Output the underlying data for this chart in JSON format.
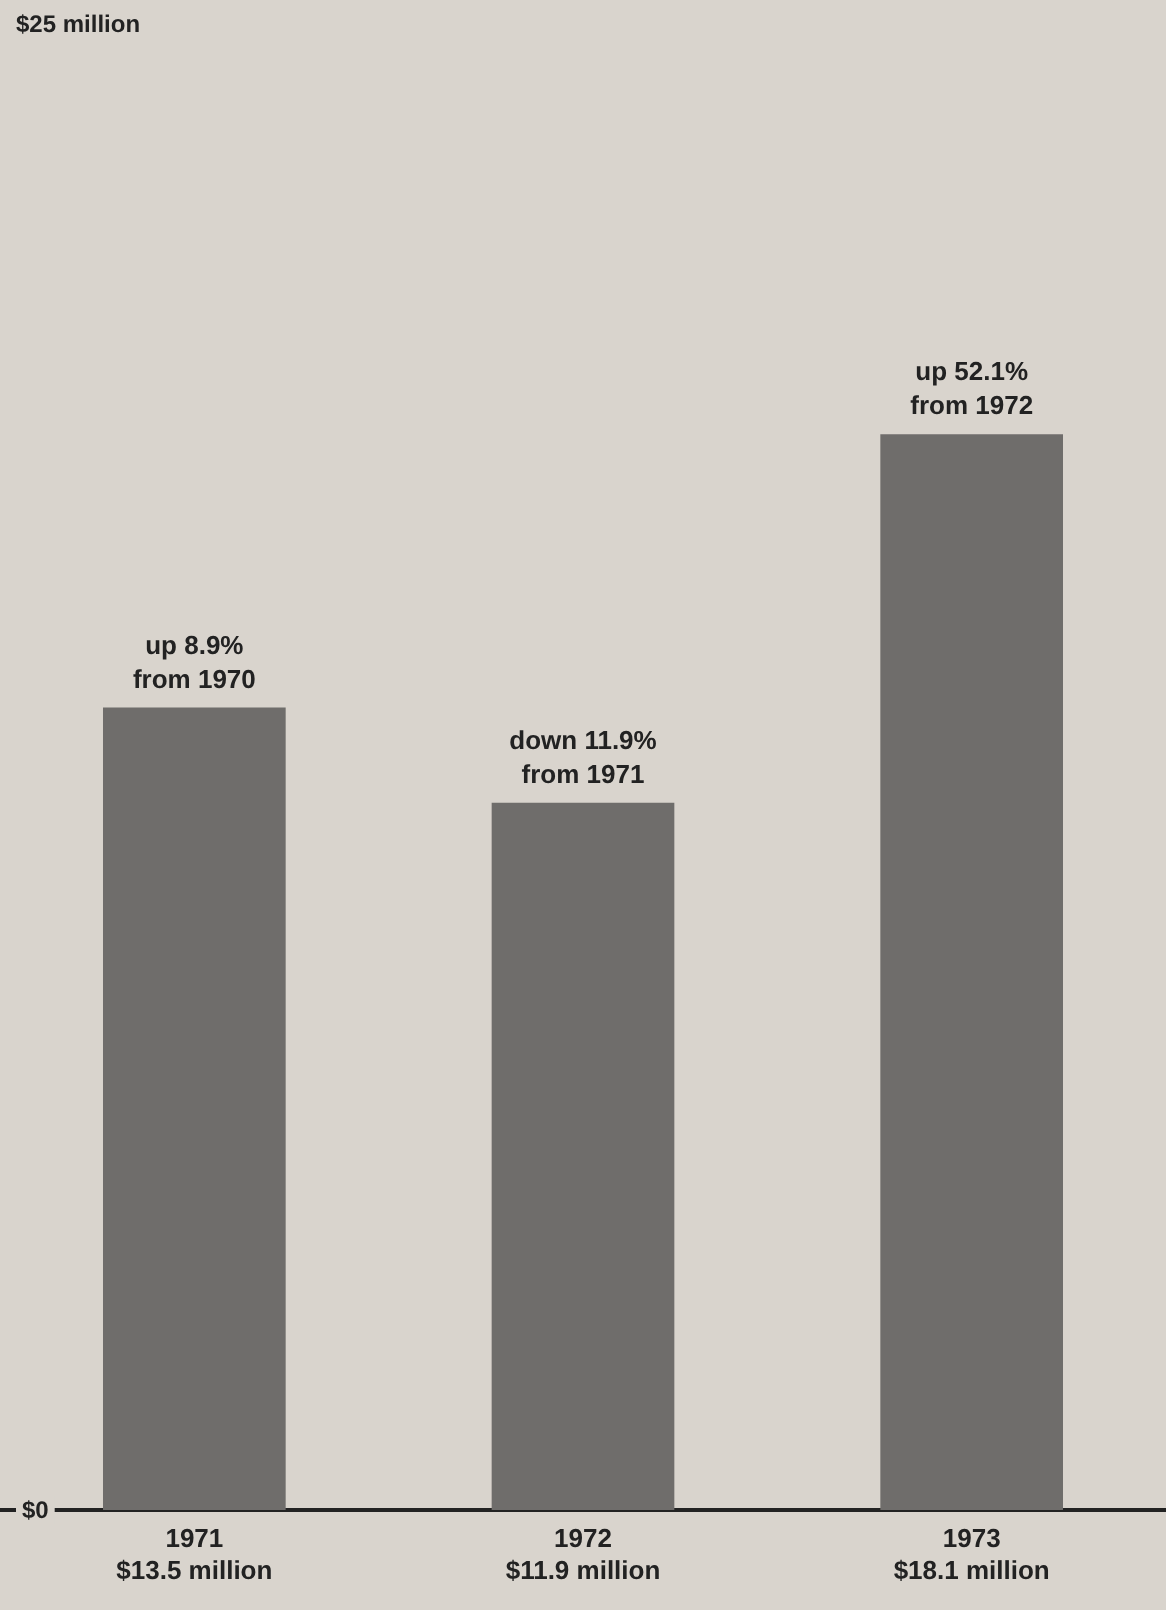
{
  "chart_data": {
    "type": "bar",
    "categories": [
      "1971\n$13.5 million",
      "1972\n$11.9 million",
      "1973\n$18.1 million"
    ],
    "values": [
      13.5,
      11.9,
      18.1
    ],
    "color": "#6f6d6b",
    "ylim": [
      0,
      25
    ],
    "yticks": [
      {
        "value": 0,
        "label": "$0"
      },
      {
        "value": 25,
        "label": "$25 million"
      }
    ],
    "annotations": [
      {
        "text": "up 8.9%\nfrom 1970",
        "x": "1971\n$13.5 million",
        "y": 13.5
      },
      {
        "text": "down 11.9%\nfrom 1971",
        "x": "1972\n$11.9 million",
        "y": 11.9
      },
      {
        "text": "up 52.1%\nfrom 1972",
        "x": "1973\n$18.1 million",
        "y": 18.1
      }
    ]
  }
}
